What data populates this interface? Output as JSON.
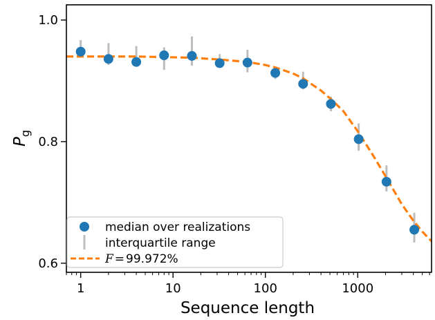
{
  "chart_data": {
    "type": "scatter",
    "xlabel": "Sequence length",
    "ylabel": "P",
    "ylabel_subscript": "g",
    "xscale": "log",
    "xlim": [
      0.7,
      6300
    ],
    "ylim": [
      0.585,
      1.025
    ],
    "xticks": [
      {
        "value": 1,
        "label": "1"
      },
      {
        "value": 10,
        "label": "10"
      },
      {
        "value": 100,
        "label": "100"
      },
      {
        "value": 1000,
        "label": "1000"
      }
    ],
    "yticks": [
      {
        "value": 0.6,
        "label": "0.6"
      },
      {
        "value": 0.8,
        "label": "0.8"
      },
      {
        "value": 1.0,
        "label": "1.0"
      }
    ],
    "grid": false,
    "legend_position": "lower-left",
    "legend": [
      {
        "label": "median over realizations"
      },
      {
        "label": "interquartile range"
      },
      {
        "label": "99.972%",
        "prefix": "F",
        "operator": "="
      }
    ],
    "series": [
      {
        "name": "median over realizations",
        "color": "#1f77b4",
        "x": [
          1,
          2,
          4,
          8,
          16,
          32,
          64,
          128,
          256,
          512,
          1024,
          2048,
          4096
        ],
        "y": [
          0.948,
          0.936,
          0.931,
          0.942,
          0.941,
          0.929,
          0.93,
          0.913,
          0.895,
          0.862,
          0.804,
          0.734,
          0.655
        ]
      },
      {
        "name": "interquartile range",
        "color": "#bdbdbd",
        "x": [
          1,
          2,
          4,
          8,
          16,
          32,
          64,
          128,
          256,
          512,
          1024,
          2048,
          4096
        ],
        "low": [
          0.94,
          0.926,
          0.924,
          0.918,
          0.925,
          0.922,
          0.914,
          0.903,
          0.886,
          0.85,
          0.785,
          0.718,
          0.634
        ],
        "high": [
          0.967,
          0.962,
          0.957,
          0.955,
          0.973,
          0.944,
          0.951,
          0.922,
          0.915,
          0.874,
          0.83,
          0.761,
          0.683
        ]
      },
      {
        "name": "fit",
        "color": "#ff7f0e",
        "type": "line",
        "style": "dashed",
        "fit_value": "99.972%",
        "x": [
          0.7,
          1,
          2,
          4,
          8,
          16,
          32,
          64,
          100,
          128,
          200,
          256,
          400,
          512,
          700,
          1000,
          1500,
          2000,
          3000,
          4000,
          5000,
          6300
        ],
        "y": [
          0.94,
          0.94,
          0.94,
          0.94,
          0.939,
          0.938,
          0.935,
          0.931,
          0.926,
          0.922,
          0.912,
          0.904,
          0.884,
          0.87,
          0.85,
          0.817,
          0.775,
          0.743,
          0.697,
          0.67,
          0.652,
          0.636
        ]
      }
    ]
  }
}
